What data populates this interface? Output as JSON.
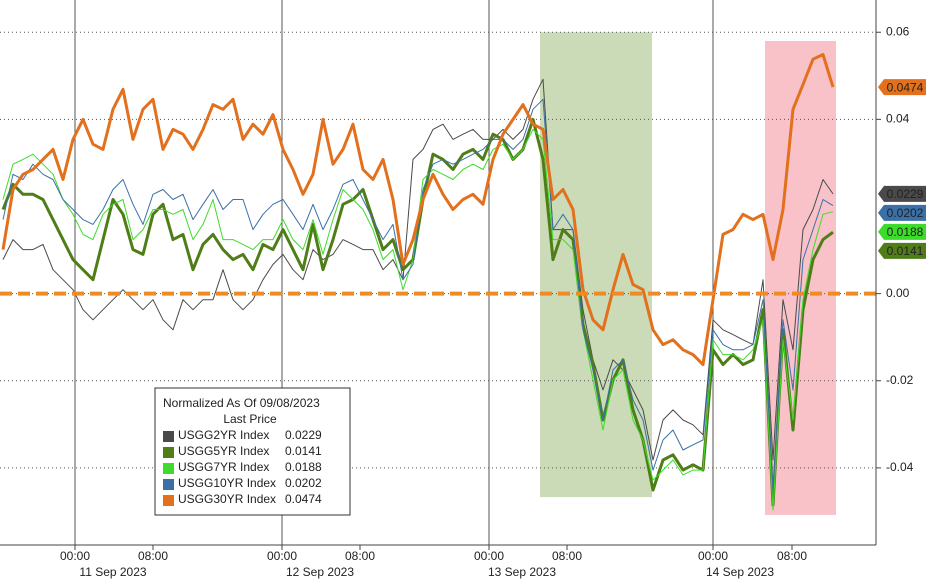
{
  "chart_data": {
    "type": "line",
    "x": [
      0,
      1,
      2,
      3,
      4,
      5,
      6,
      7,
      8,
      9,
      10,
      11,
      12,
      13,
      14,
      15,
      16,
      17,
      18,
      19,
      20,
      21,
      22,
      23,
      24,
      25,
      26,
      27,
      28,
      29,
      30,
      31,
      32,
      33,
      34,
      35,
      36,
      37,
      38,
      39,
      40,
      41,
      42,
      43,
      44,
      45,
      46,
      47,
      48,
      49,
      50,
      51,
      52,
      53,
      54,
      55,
      56,
      57,
      58,
      59,
      60,
      61,
      62,
      63,
      64,
      65,
      66,
      67,
      68,
      69,
      70,
      71,
      72,
      73,
      74,
      75,
      76,
      77,
      78,
      79,
      80,
      81,
      82,
      83
    ],
    "xlim": [
      -0.3,
      87.3
    ],
    "xticks": [
      {
        "value": 7.2,
        "label": "00:00"
      },
      {
        "value": 15,
        "label": "08:00"
      },
      {
        "value": 27.9,
        "label": "00:00"
      },
      {
        "value": 35.7,
        "label": "08:00"
      },
      {
        "value": 48.6,
        "label": "00:00"
      },
      {
        "value": 56.4,
        "label": "08:00"
      },
      {
        "value": 71,
        "label": "00:00"
      },
      {
        "value": 78.9,
        "label": "08:00"
      }
    ],
    "day_labels": [
      {
        "value": 11,
        "label": "11 Sep 2023"
      },
      {
        "value": 31.7,
        "label": "12 Sep 2023"
      },
      {
        "value": 51.9,
        "label": "13 Sep 2023"
      },
      {
        "value": 73.7,
        "label": "14 Sep 2023"
      }
    ],
    "ylim": [
      -0.0577,
      0.0674
    ],
    "yticks": [
      0.06,
      0.04,
      {
        "value": 0,
        "label": "0.00"
      },
      -0.02,
      -0.04
    ],
    "grid": true,
    "reference_line": {
      "y": 0,
      "color": "#f08a24"
    },
    "highlights": [
      {
        "x": [
          53.7,
          64.9
        ],
        "y": [
          -0.0467,
          0.06
        ],
        "color": "#b9cf9f"
      },
      {
        "x": [
          76.2,
          83.3
        ],
        "y": [
          -0.0508,
          0.058
        ],
        "color": "#f6aeb6"
      }
    ],
    "legend": {
      "title": "Normalized As Of 09/08/2023",
      "subtitle": "Last Price"
    },
    "series": [
      {
        "name": "USGG2YR Index",
        "color": "#4a4a4a",
        "width": 1,
        "last": 0.0229,
        "values": [
          0.0078,
          0.0124,
          0.0101,
          0.0101,
          0.0113,
          0.0055,
          0.0032,
          0.0009,
          -0.0037,
          -0.006,
          -0.0037,
          -0.0014,
          0.0009,
          -0.0014,
          -0.0037,
          -0.0014,
          -0.006,
          -0.0083,
          -0.0014,
          -0.0037,
          -0.0014,
          -0.0014,
          0.0055,
          -0.0014,
          -0.0037,
          -0.0014,
          0.0032,
          0.0067,
          0.009,
          0.0055,
          0.0032,
          0.0101,
          0.0078,
          0.009,
          0.0124,
          0.0113,
          0.0101,
          0.0101,
          0.0055,
          0.0078,
          0.0032,
          0.0308,
          0.0331,
          0.0377,
          0.0389,
          0.0354,
          0.0366,
          0.0377,
          0.0354,
          0.0354,
          0.0377,
          0.0354,
          0.0377,
          0.0446,
          0.0492,
          0.0147,
          0.0147,
          0.0147,
          -0.0037,
          -0.0152,
          -0.0221,
          -0.0152,
          -0.0175,
          -0.0221,
          -0.0267,
          -0.0382,
          -0.029,
          -0.0267,
          -0.029,
          -0.0301,
          -0.0324,
          -0.006,
          -0.0083,
          -0.0094,
          -0.0106,
          -0.0117,
          0.0032,
          -0.0382,
          -0.0014,
          -0.0129,
          0.0147,
          0.0193,
          0.0262,
          0.0229
        ]
      },
      {
        "name": "USGG5YR Index",
        "color": "#4f7d18",
        "width": 3,
        "last": 0.0141,
        "values": [
          0.0193,
          0.0251,
          0.0228,
          0.0228,
          0.0216,
          0.017,
          0.0124,
          0.0078,
          0.0055,
          0.0032,
          0.0124,
          0.0216,
          0.0182,
          0.0101,
          0.009,
          0.0182,
          0.0205,
          0.0124,
          0.0136,
          0.0055,
          0.0113,
          0.0136,
          0.0101,
          0.0078,
          0.009,
          0.0055,
          0.0113,
          0.0101,
          0.0147,
          0.0101,
          0.0055,
          0.0159,
          0.0055,
          0.0124,
          0.0205,
          0.0216,
          0.0239,
          0.017,
          0.0101,
          0.0124,
          0.0055,
          0.0078,
          0.0216,
          0.032,
          0.0308,
          0.0285,
          0.032,
          0.0331,
          0.0308,
          0.0366,
          0.0354,
          0.0308,
          0.0331,
          0.04,
          0.0308,
          0.0078,
          0.0147,
          0.0124,
          -0.0071,
          -0.0163,
          -0.029,
          -0.0198,
          -0.0152,
          -0.0267,
          -0.0336,
          -0.0451,
          -0.0382,
          -0.037,
          -0.0405,
          -0.0393,
          -0.0405,
          -0.0129,
          -0.0163,
          -0.014,
          -0.0163,
          -0.0152,
          -0.0037,
          -0.0485,
          -0.0083,
          -0.0313,
          -0.0037,
          0.0078,
          0.0124,
          0.0141
        ]
      },
      {
        "name": "USGG7YR Index",
        "color": "#3ddc2a",
        "width": 1,
        "last": 0.0188,
        "values": [
          0.0216,
          0.0297,
          0.0308,
          0.032,
          0.0297,
          0.0274,
          0.0216,
          0.0182,
          0.0136,
          0.0124,
          0.0182,
          0.0205,
          0.0216,
          0.0124,
          0.0147,
          0.0193,
          0.0193,
          0.0182,
          0.0193,
          0.0124,
          0.0159,
          0.0216,
          0.0124,
          0.0124,
          0.0113,
          0.0101,
          0.0124,
          0.0124,
          0.017,
          0.0124,
          0.0101,
          0.017,
          0.009,
          0.017,
          0.0239,
          0.0216,
          0.0193,
          0.0147,
          0.0078,
          0.0101,
          0.0009,
          0.0078,
          0.0262,
          0.0285,
          0.0274,
          0.0262,
          0.0285,
          0.0297,
          0.0285,
          0.0331,
          0.0343,
          0.0308,
          0.0331,
          0.0377,
          0.0354,
          0.0124,
          0.0124,
          0.0101,
          -0.0083,
          -0.0198,
          -0.0313,
          -0.0198,
          -0.0175,
          -0.029,
          -0.0336,
          -0.0428,
          -0.0405,
          -0.0382,
          -0.0416,
          -0.0405,
          -0.0405,
          -0.0106,
          -0.014,
          -0.014,
          -0.0152,
          -0.0129,
          -0.006,
          -0.0497,
          -0.0106,
          -0.029,
          -0.0014,
          0.0101,
          0.0182,
          0.0188
        ]
      },
      {
        "name": "USGG10YR Index",
        "color": "#3b6fa8",
        "width": 1,
        "last": 0.0202,
        "values": [
          0.017,
          0.0274,
          0.0262,
          0.0297,
          0.0274,
          0.0262,
          0.0216,
          0.0193,
          0.017,
          0.0159,
          0.0193,
          0.0239,
          0.0262,
          0.0205,
          0.0159,
          0.0228,
          0.0239,
          0.0216,
          0.0228,
          0.017,
          0.0205,
          0.0239,
          0.0193,
          0.0216,
          0.0216,
          0.0147,
          0.0182,
          0.0205,
          0.0216,
          0.0182,
          0.0147,
          0.0205,
          0.0147,
          0.0193,
          0.0251,
          0.0262,
          0.0216,
          0.017,
          0.0124,
          0.0159,
          0.0032,
          0.0067,
          0.0239,
          0.0297,
          0.0308,
          0.0297,
          0.0308,
          0.032,
          0.0331,
          0.0354,
          0.0354,
          0.0331,
          0.0354,
          0.0423,
          0.0446,
          0.0147,
          0.0182,
          0.0147,
          -0.0083,
          -0.0175,
          -0.029,
          -0.0175,
          -0.0152,
          -0.0244,
          -0.029,
          -0.0405,
          -0.0336,
          -0.0313,
          -0.0359,
          -0.0347,
          -0.0336,
          -0.0083,
          -0.0117,
          -0.0129,
          -0.0129,
          -0.0117,
          -0.0014,
          -0.0451,
          -0.006,
          -0.0221,
          0.0078,
          0.0147,
          0.0216,
          0.0202
        ]
      },
      {
        "name": "USGG30YR Index",
        "color": "#e2701c",
        "width": 3,
        "last": 0.0474,
        "values": [
          0.0101,
          0.0239,
          0.0274,
          0.0285,
          0.0308,
          0.0331,
          0.0262,
          0.0354,
          0.04,
          0.0343,
          0.0331,
          0.0423,
          0.0469,
          0.0354,
          0.0423,
          0.0446,
          0.0331,
          0.0377,
          0.0366,
          0.0331,
          0.0377,
          0.0434,
          0.0423,
          0.0446,
          0.0354,
          0.0389,
          0.0366,
          0.0411,
          0.0331,
          0.0285,
          0.0228,
          0.0274,
          0.04,
          0.0297,
          0.0331,
          0.0389,
          0.0285,
          0.0262,
          0.0308,
          0.0216,
          0.0067,
          0.0124,
          0.0216,
          0.0274,
          0.0228,
          0.0193,
          0.0216,
          0.0228,
          0.0205,
          0.0308,
          0.0366,
          0.04,
          0.0434,
          0.0389,
          0.0377,
          0.0216,
          0.0239,
          0.0193,
          0.0009,
          -0.006,
          -0.0083,
          0.0009,
          0.009,
          0.0021,
          0.0009,
          -0.0083,
          -0.0117,
          -0.0106,
          -0.0129,
          -0.014,
          -0.0163,
          -0.0014,
          0.0136,
          0.0147,
          0.0182,
          0.017,
          0.0182,
          0.0078,
          0.0193,
          0.0423,
          0.048,
          0.0538,
          0.0549,
          0.0474
        ]
      }
    ]
  }
}
